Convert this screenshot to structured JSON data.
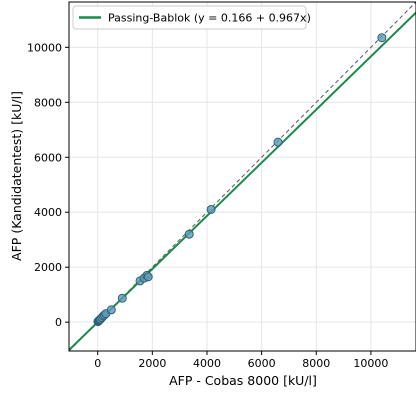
{
  "chart_data": {
    "type": "scatter",
    "title": "",
    "xlabel": "AFP - Cobas 8000 [kU/l]",
    "ylabel": "AFP (Kandidatentest) [kU/l]",
    "xlim": [
      -1050,
      11650
    ],
    "ylim": [
      -1050,
      11650
    ],
    "xticks": [
      0,
      2000,
      4000,
      6000,
      8000,
      10000
    ],
    "yticks": [
      0,
      2000,
      4000,
      6000,
      8000,
      10000
    ],
    "grid": true,
    "legend_position": "top-left",
    "colors": {
      "fit_line": "#1a8a4a",
      "identity_line": "#555555",
      "points_fill": "#5b9bb5",
      "points_edge": "#2f5f75"
    },
    "series": [
      {
        "name": "",
        "kind": "points",
        "x": [
          10,
          30,
          50,
          60,
          80,
          100,
          150,
          200,
          250,
          300,
          500,
          900,
          1550,
          1700,
          1800,
          1850,
          3350,
          4150,
          6600,
          10400
        ],
        "y": [
          20,
          40,
          60,
          70,
          90,
          110,
          160,
          220,
          260,
          310,
          450,
          870,
          1500,
          1600,
          1700,
          1650,
          3200,
          4100,
          6550,
          10350
        ]
      },
      {
        "name": "Passing-Bablok (y = 0.166 + 0.967x)",
        "kind": "line",
        "intercept": 0.166,
        "slope": 0.967
      },
      {
        "name": "",
        "kind": "line",
        "style": "dashed",
        "intercept": 0,
        "slope": 1
      }
    ]
  }
}
